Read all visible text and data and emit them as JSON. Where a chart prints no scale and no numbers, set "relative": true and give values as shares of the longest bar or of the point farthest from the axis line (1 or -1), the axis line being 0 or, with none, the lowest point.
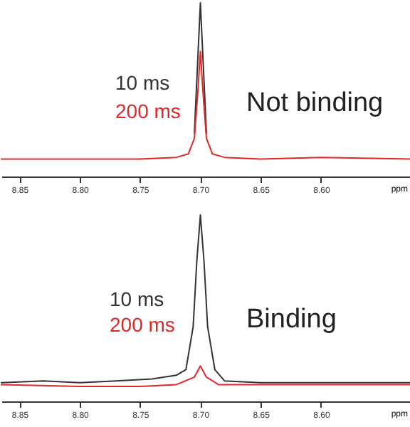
{
  "chart_data": [
    {
      "type": "line",
      "relative": true,
      "xlabel": "ppm",
      "xlim": [
        8.865,
        8.525
      ],
      "xticks": [
        {
          "value": 8.85,
          "label": "8.85"
        },
        {
          "value": 8.8,
          "label": "8.80"
        },
        {
          "value": 8.75,
          "label": "8.75"
        },
        {
          "value": 8.7,
          "label": "8.70"
        },
        {
          "value": 8.65,
          "label": "8.65"
        },
        {
          "value": 8.6,
          "label": "8.60"
        }
      ],
      "annotations": [
        "Not binding"
      ],
      "tick_labels": "x",
      "series": [
        {
          "name": "10 ms",
          "color": "#333333",
          "x": [
            8.705,
            8.702,
            8.7,
            8.698,
            8.695
          ],
          "values": [
            0.25,
            0.7,
            1,
            0.7,
            0.25
          ]
        },
        {
          "name": "200 ms",
          "color": "#e02828",
          "x": [
            8.865,
            8.8,
            8.75,
            8.72,
            8.71,
            8.705,
            8.702,
            8.7,
            8.698,
            8.695,
            8.69,
            8.68,
            8.65,
            8.6,
            8.525
          ],
          "values": [
            0.1,
            0.1,
            0.1,
            0.11,
            0.13,
            0.22,
            0.5,
            0.72,
            0.5,
            0.22,
            0.13,
            0.11,
            0.1,
            0.11,
            0.1
          ]
        }
      ]
    },
    {
      "type": "line",
      "relative": true,
      "xlabel": "ppm",
      "xlim": [
        8.865,
        8.525
      ],
      "xticks": [
        {
          "value": 8.85,
          "label": "8.85"
        },
        {
          "value": 8.8,
          "label": "8.80"
        },
        {
          "value": 8.75,
          "label": "8.75"
        },
        {
          "value": 8.7,
          "label": "8.70"
        },
        {
          "value": 8.65,
          "label": "8.65"
        },
        {
          "value": 8.6,
          "label": "8.60"
        }
      ],
      "annotations": [
        "Binding"
      ],
      "tick_labels": "x",
      "series": [
        {
          "name": "10 ms",
          "color": "#333333",
          "x": [
            8.865,
            8.83,
            8.8,
            8.77,
            8.74,
            8.72,
            8.712,
            8.706,
            8.703,
            8.7,
            8.697,
            8.694,
            8.688,
            8.68,
            8.65,
            8.62,
            8.6,
            8.525
          ],
          "values": [
            0.1,
            0.11,
            0.1,
            0.11,
            0.12,
            0.14,
            0.17,
            0.4,
            0.75,
            1,
            0.75,
            0.4,
            0.17,
            0.11,
            0.1,
            0.1,
            0.1,
            0.1
          ]
        },
        {
          "name": "200 ms",
          "color": "#e02828",
          "x": [
            8.865,
            8.8,
            8.75,
            8.72,
            8.705,
            8.7,
            8.695,
            8.685,
            8.65,
            8.6,
            8.525
          ],
          "values": [
            0.09,
            0.08,
            0.08,
            0.09,
            0.13,
            0.19,
            0.13,
            0.09,
            0.09,
            0.09,
            0.09
          ]
        }
      ]
    }
  ]
}
